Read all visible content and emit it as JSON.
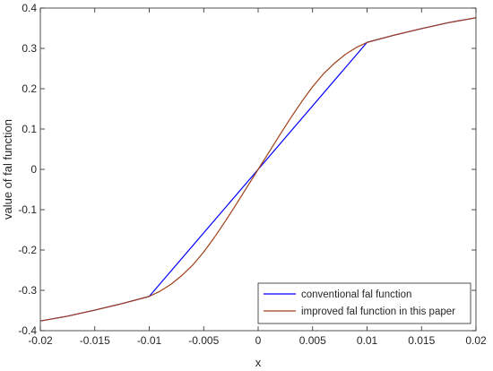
{
  "chart_data": {
    "type": "line",
    "title": "",
    "xlabel": "x",
    "ylabel": "value of fal function",
    "xlim": [
      -0.02,
      0.02
    ],
    "ylim": [
      -0.4,
      0.4
    ],
    "grid": false,
    "legend_position": "bottom-right",
    "x_ticks": [
      -0.02,
      -0.015,
      -0.01,
      -0.005,
      0,
      0.005,
      0.01,
      0.015,
      0.02
    ],
    "x_tick_labels": [
      "-0.02",
      "-0.015",
      "-0.01",
      "-0.005",
      "0",
      "0.005",
      "0.01",
      "0.015",
      "0.02"
    ],
    "y_ticks": [
      -0.4,
      -0.3,
      -0.2,
      -0.1,
      0,
      0.1,
      0.2,
      0.3,
      0.4
    ],
    "y_tick_labels": [
      "-0.4",
      "-0.3",
      "-0.2",
      "-0.1",
      "0",
      "0.1",
      "0.2",
      "0.3",
      "0.4"
    ],
    "series": [
      {
        "name": "conventional fal function",
        "color": "#0000ff",
        "x": [
          -0.02,
          -0.0175,
          -0.015,
          -0.0125,
          -0.01,
          0.0,
          0.01,
          0.0125,
          0.015,
          0.0175,
          0.02
        ],
        "y": [
          -0.376,
          -0.364,
          -0.349,
          -0.333,
          -0.315,
          0.0,
          0.315,
          0.333,
          0.349,
          0.364,
          0.376
        ]
      },
      {
        "name": "improved fal function in this paper",
        "color": "#a0401a",
        "x": [
          -0.02,
          -0.0175,
          -0.015,
          -0.0125,
          -0.01,
          -0.009,
          -0.008,
          -0.007,
          -0.006,
          -0.005,
          -0.004,
          -0.003,
          -0.002,
          -0.001,
          0.0,
          0.001,
          0.002,
          0.003,
          0.004,
          0.005,
          0.006,
          0.007,
          0.008,
          0.009,
          0.01,
          0.0125,
          0.015,
          0.0175,
          0.02
        ],
        "y": [
          -0.376,
          -0.364,
          -0.349,
          -0.333,
          -0.315,
          -0.302,
          -0.285,
          -0.263,
          -0.237,
          -0.205,
          -0.168,
          -0.128,
          -0.086,
          -0.043,
          0.0,
          0.043,
          0.086,
          0.128,
          0.168,
          0.205,
          0.237,
          0.263,
          0.285,
          0.302,
          0.315,
          0.333,
          0.349,
          0.364,
          0.376
        ]
      }
    ]
  }
}
